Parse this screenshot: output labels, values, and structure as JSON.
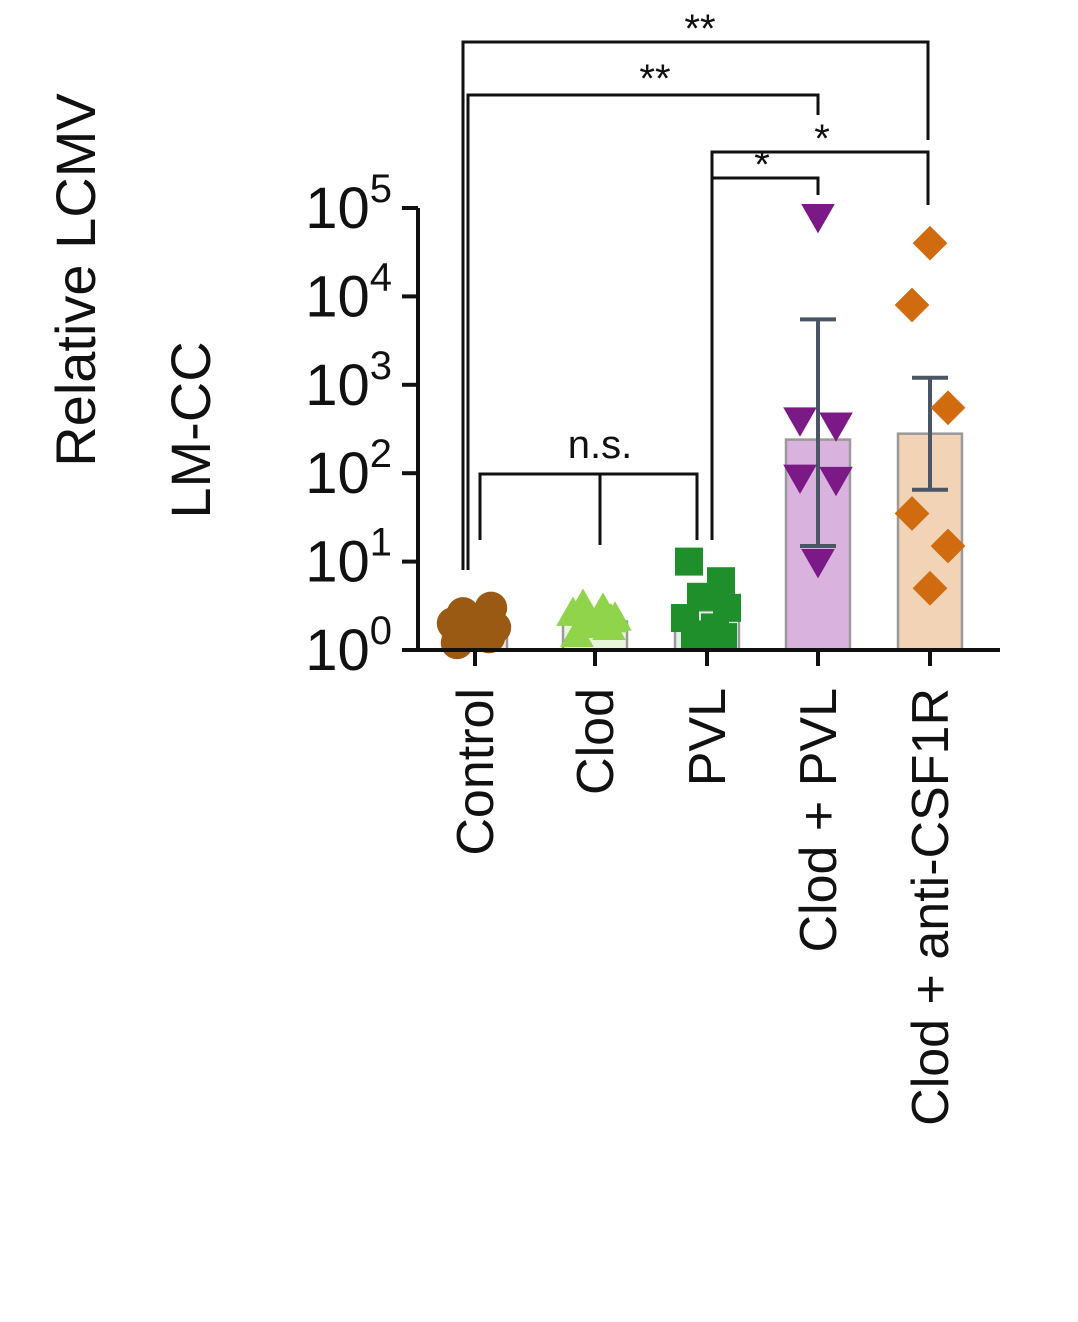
{
  "chart_data": {
    "type": "bar",
    "ylabel_lines": [
      "Relative LCMV",
      "LM-CC"
    ],
    "yscale": "log",
    "ylim": [
      1,
      100000
    ],
    "yticks": [
      {
        "value": 1,
        "base": "10",
        "exp": "0"
      },
      {
        "value": 10,
        "base": "10",
        "exp": "1"
      },
      {
        "value": 100,
        "base": "10",
        "exp": "2"
      },
      {
        "value": 1000,
        "base": "10",
        "exp": "3"
      },
      {
        "value": 10000,
        "base": "10",
        "exp": "4"
      },
      {
        "value": 100000,
        "base": "10",
        "exp": "5"
      }
    ],
    "categories": [
      "Control",
      "Clod",
      "PVL",
      "Clod + PVL",
      "Clod + anti-CSF1R"
    ],
    "groups": [
      {
        "category": "Control",
        "marker": "circle",
        "color": "#9b5a14",
        "bar_fill": "#f3e7dc",
        "mean": 1.7,
        "error": null,
        "points": [
          1.2,
          1.4,
          1.6,
          1.8,
          2.0,
          2.3,
          2.6,
          3.0,
          1.5,
          2.1
        ]
      },
      {
        "category": "Clod",
        "marker": "triangle-up",
        "color": "#8fd44a",
        "bar_fill": "#e8f6da",
        "mean": 2.1,
        "error": null,
        "points": [
          1.5,
          1.8,
          2.0,
          2.3,
          2.6,
          2.9,
          3.2,
          2.2,
          1.9
        ]
      },
      {
        "category": "PVL",
        "marker": "square",
        "color": "#1f8f2c",
        "bar_fill": "#e2f1e3",
        "mean": 2.8,
        "error": null,
        "points": [
          10,
          6,
          4,
          3,
          2.3,
          1.8,
          1.5,
          1.4
        ]
      },
      {
        "category": "Clod + PVL",
        "marker": "triangle-down",
        "color": "#7b1a86",
        "bar_fill": "#d9b3dd",
        "mean": 240,
        "error": [
          15,
          5500
        ],
        "points": [
          80000,
          400,
          350,
          90,
          85,
          10
        ]
      },
      {
        "category": "Clod + anti-CSF1R",
        "marker": "diamond",
        "color": "#d06b10",
        "bar_fill": "#f2d3b5",
        "mean": 280,
        "error": [
          65,
          1200
        ],
        "points": [
          40000,
          8000,
          550,
          35,
          15,
          5
        ]
      }
    ],
    "annotations": [
      {
        "from": "Control",
        "to": "Clod + anti-CSF1R",
        "label": "**"
      },
      {
        "from": "Control",
        "to": "Clod + PVL",
        "label": "**"
      },
      {
        "from": "PVL",
        "to": "Clod + anti-CSF1R",
        "label": "*"
      },
      {
        "from": "PVL",
        "to": "Clod + PVL",
        "label": "*"
      },
      {
        "from": "Control",
        "to": "PVL",
        "label": "n.s.",
        "includes": [
          "Clod"
        ]
      }
    ]
  }
}
